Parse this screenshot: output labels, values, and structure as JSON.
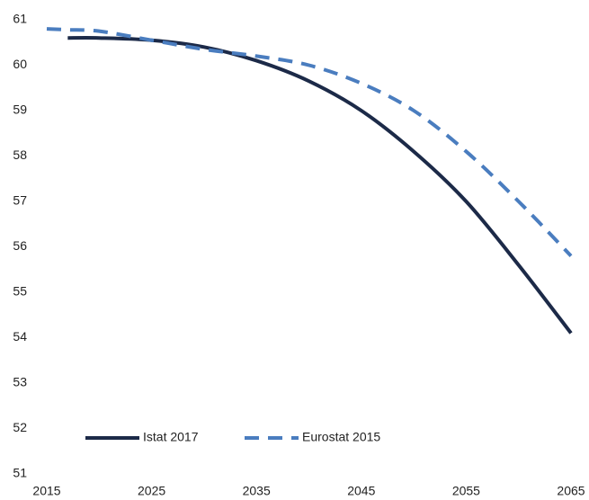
{
  "chart_data": {
    "type": "line",
    "x": [
      2015,
      2017,
      2020,
      2025,
      2030,
      2035,
      2040,
      2045,
      2050,
      2055,
      2060,
      2065
    ],
    "series": [
      {
        "name": "Istat 2017",
        "color": "#1c2a48",
        "dash": false,
        "values": [
          null,
          60.6,
          60.6,
          60.55,
          60.4,
          60.1,
          59.65,
          59.0,
          58.1,
          57.0,
          55.6,
          54.1
        ]
      },
      {
        "name": "Eurostat 2015",
        "color": "#4a7dbf",
        "dash": true,
        "values": [
          60.8,
          60.78,
          60.75,
          60.55,
          60.35,
          60.2,
          60.0,
          59.6,
          59.0,
          58.1,
          57.0,
          55.8
        ]
      }
    ],
    "xlim": [
      2015,
      2065
    ],
    "xticks": [
      2015,
      2025,
      2035,
      2045,
      2055,
      2065
    ],
    "ylim": [
      51,
      61
    ],
    "yticks": [
      51,
      52,
      53,
      54,
      55,
      56,
      57,
      58,
      59,
      60,
      61
    ],
    "grid": false,
    "legend": "bottom-left"
  }
}
